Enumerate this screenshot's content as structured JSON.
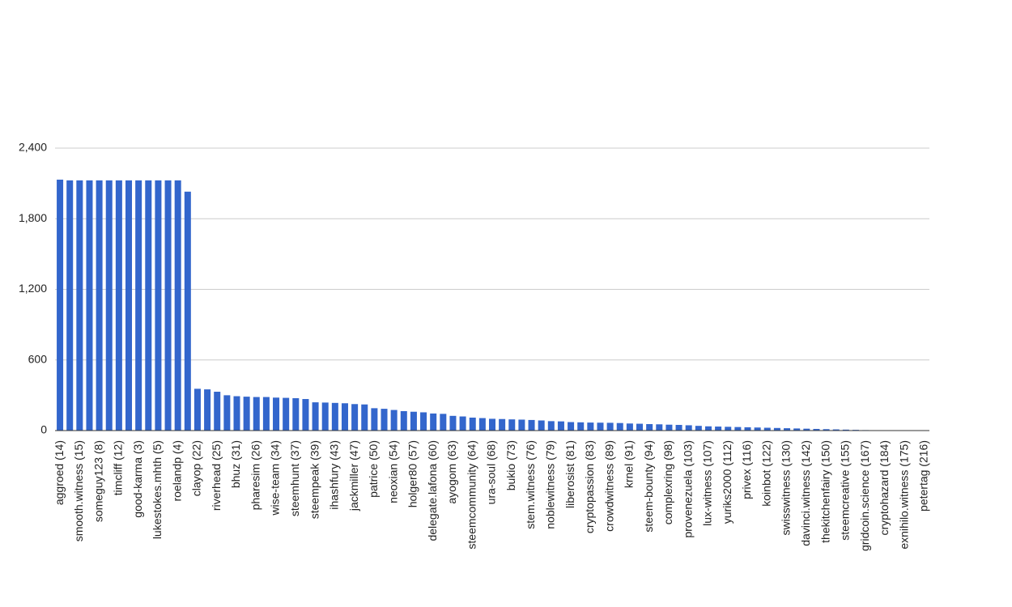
{
  "chart_data": {
    "type": "bar",
    "color": "#3366cc",
    "grid": true,
    "ylim": [
      0,
      2400
    ],
    "yticks": [
      0,
      600,
      {
        "value": 1200,
        "label": "1,200"
      },
      {
        "value": 1800,
        "label": "1,800"
      },
      {
        "value": 2400,
        "label": "2,400"
      }
    ],
    "categories": [
      "aggroed (14)",
      null,
      "smooth.witness (15)",
      null,
      "someguy123 (8)",
      null,
      "timcliff (12)",
      null,
      "good-karma (3)",
      null,
      "lukestokes.mhth (5)",
      null,
      "roelandp (4)",
      null,
      "clayop (22)",
      null,
      "riverhead (25)",
      null,
      "bhuz (31)",
      null,
      "pharesim (26)",
      null,
      "wise-team (34)",
      null,
      "steemhunt (37)",
      null,
      "steempeak (39)",
      null,
      "ihashfury (43)",
      null,
      "jackmiller (47)",
      null,
      "patrice (50)",
      null,
      "neoxian (54)",
      null,
      "holger80 (57)",
      null,
      "delegate.lafona (60)",
      null,
      "ayogom (63)",
      null,
      "steemcommunity (64)",
      null,
      "ura-soul (68)",
      null,
      "bukio (73)",
      null,
      "stem.witness (76)",
      null,
      "noblewitness (79)",
      null,
      "liberosist (81)",
      null,
      "cryptopassion (83)",
      null,
      "crowdwitness (89)",
      null,
      "krnel (91)",
      null,
      "steem-bounty (94)",
      null,
      "complexring (98)",
      null,
      "provenezuela (103)",
      null,
      "lux-witness (107)",
      null,
      "yuriks2000 (112)",
      null,
      "privex (116)",
      null,
      "koinbot (122)",
      null,
      "swisswitness (130)",
      null,
      "davinci.witness (142)",
      null,
      "thekitchenfairy (150)",
      null,
      "steemcreative (155)",
      null,
      "gridcoin.science (167)",
      null,
      "cryptohazard (184)",
      null,
      "exnihilo.witness (175)",
      null,
      "petertag (216)"
    ],
    "values": [
      2132,
      2126,
      2126,
      2126,
      2126,
      2126,
      2126,
      2126,
      2126,
      2126,
      2126,
      2126,
      2126,
      2030,
      355,
      350,
      330,
      300,
      292,
      288,
      285,
      285,
      280,
      278,
      275,
      268,
      240,
      238,
      235,
      232,
      225,
      222,
      190,
      185,
      175,
      165,
      160,
      155,
      145,
      142,
      125,
      120,
      110,
      106,
      100,
      98,
      95,
      93,
      90,
      86,
      80,
      78,
      72,
      70,
      68,
      67,
      66,
      64,
      60,
      58,
      55,
      53,
      50,
      48,
      45,
      40,
      36,
      34,
      32,
      30,
      28,
      26,
      24,
      22,
      20,
      18,
      16,
      14,
      12,
      10,
      8,
      6,
      4,
      3,
      2,
      1.5,
      1,
      0.5,
      0.3
    ]
  }
}
